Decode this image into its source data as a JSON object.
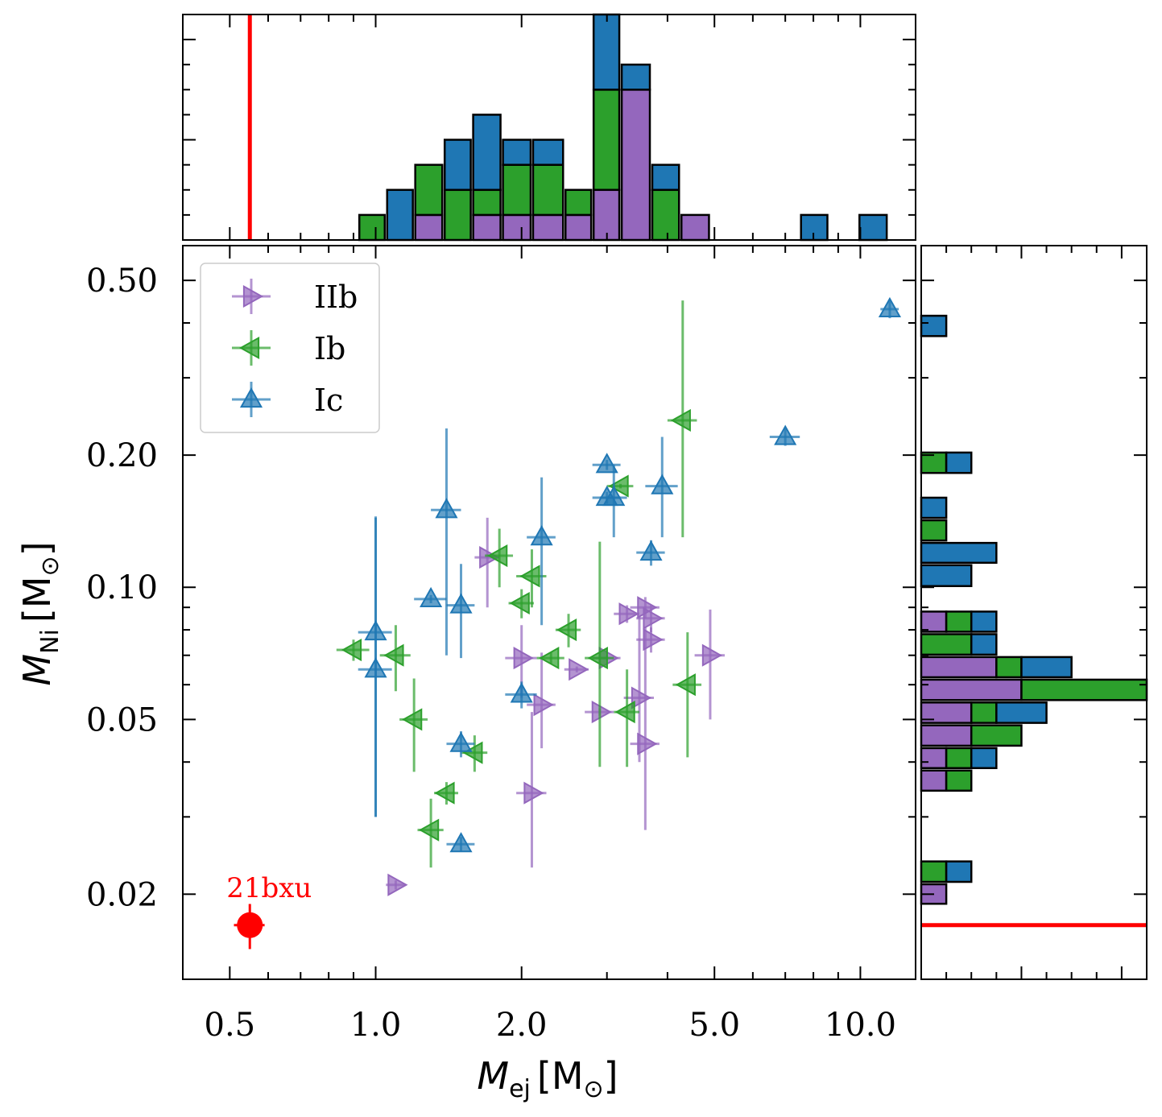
{
  "chart_data": {
    "type": "scatter",
    "xscale": "log",
    "yscale": "log",
    "xlim": [
      0.4,
      13.0
    ],
    "ylim": [
      0.0128,
      0.6
    ],
    "xlabel": {
      "symbol": "M",
      "sub": "ej",
      "unit": "M",
      "unit_sub": "⊙"
    },
    "ylabel": {
      "symbol": "M",
      "sub": "Ni",
      "unit": "M",
      "unit_sub": "⊙"
    },
    "xticks": [
      0.5,
      1.0,
      2.0,
      5.0,
      10.0
    ],
    "xtick_labels": [
      "0.5",
      "1.0",
      "2.0",
      "5.0",
      "10.0"
    ],
    "yticks": [
      0.02,
      0.05,
      0.1,
      0.2,
      0.5
    ],
    "ytick_labels": [
      "0.02",
      "0.05",
      "0.10",
      "0.20",
      "0.50"
    ],
    "legend": {
      "position": "upper-left",
      "entries": [
        "IIb",
        "Ib",
        "Ic"
      ]
    },
    "series": [
      {
        "name": "IIb",
        "color": "#9467bd",
        "marker": "triangle-right",
        "points": [
          {
            "x": 1.1,
            "y": 0.021,
            "xerr": 0.05,
            "yerr": [
              0.0005,
              0.0005
            ]
          },
          {
            "x": 1.7,
            "y": 0.117,
            "xerr": 0.1,
            "yerr": [
              0.027,
              0.027
            ]
          },
          {
            "x": 2.0,
            "y": 0.069,
            "xerr": 0.15,
            "yerr": [
              0.013,
              0.013
            ]
          },
          {
            "x": 2.1,
            "y": 0.034,
            "xerr": 0.15,
            "yerr": [
              0.011,
              0.018
            ]
          },
          {
            "x": 2.2,
            "y": 0.054,
            "xerr": 0.15,
            "yerr": [
              0.011,
              0.017
            ]
          },
          {
            "x": 2.6,
            "y": 0.065,
            "xerr": 0.15,
            "yerr": [
              0.001,
              0.001
            ]
          },
          {
            "x": 2.9,
            "y": 0.052,
            "xerr": 0.2,
            "yerr": [
              0.001,
              0.001
            ]
          },
          {
            "x": 3.0,
            "y": 0.069,
            "xerr": 0.2,
            "yerr": [
              0.001,
              0.001
            ]
          },
          {
            "x": 3.3,
            "y": 0.087,
            "xerr": 0.2,
            "yerr": [
              0.004,
              0.004
            ]
          },
          {
            "x": 3.5,
            "y": 0.056,
            "xerr": 0.25,
            "yerr": [
              0.016,
              0.03
            ]
          },
          {
            "x": 3.6,
            "y": 0.09,
            "xerr": 0.25,
            "yerr": [
              0.005,
              0.005
            ]
          },
          {
            "x": 3.6,
            "y": 0.044,
            "xerr": 0.25,
            "yerr": [
              0.016,
              0.037
            ]
          },
          {
            "x": 3.7,
            "y": 0.085,
            "xerr": 0.25,
            "yerr": [
              0.006,
              0.006
            ]
          },
          {
            "x": 3.7,
            "y": 0.076,
            "xerr": 0.25,
            "yerr": [
              0.005,
              0.005
            ]
          },
          {
            "x": 4.9,
            "y": 0.07,
            "xerr": 0.35,
            "yerr": [
              0.02,
              0.019
            ]
          }
        ]
      },
      {
        "name": "Ib",
        "color": "#2ca02c",
        "marker": "triangle-left",
        "points": [
          {
            "x": 0.9,
            "y": 0.072,
            "xerr": 0.07,
            "yerr": [
              0.004,
              0.004
            ]
          },
          {
            "x": 1.1,
            "y": 0.07,
            "xerr": 0.08,
            "yerr": [
              0.012,
              0.012
            ]
          },
          {
            "x": 1.2,
            "y": 0.05,
            "xerr": 0.08,
            "yerr": [
              0.012,
              0.012
            ]
          },
          {
            "x": 1.3,
            "y": 0.028,
            "xerr": 0.08,
            "yerr": [
              0.005,
              0.005
            ]
          },
          {
            "x": 1.4,
            "y": 0.034,
            "xerr": 0.08,
            "yerr": [
              0.002,
              0.002
            ]
          },
          {
            "x": 1.6,
            "y": 0.042,
            "xerr": 0.1,
            "yerr": [
              0.004,
              0.004
            ]
          },
          {
            "x": 1.8,
            "y": 0.118,
            "xerr": 0.12,
            "yerr": [
              0.018,
              0.018
            ]
          },
          {
            "x": 2.0,
            "y": 0.092,
            "xerr": 0.12,
            "yerr": [
              0.007,
              0.007
            ]
          },
          {
            "x": 2.1,
            "y": 0.106,
            "xerr": 0.15,
            "yerr": [
              0.016,
              0.016
            ]
          },
          {
            "x": 2.3,
            "y": 0.069,
            "xerr": 0.15,
            "yerr": [
              0.002,
              0.002
            ]
          },
          {
            "x": 2.5,
            "y": 0.08,
            "xerr": 0.15,
            "yerr": [
              0.007,
              0.007
            ]
          },
          {
            "x": 2.9,
            "y": 0.069,
            "xerr": 0.2,
            "yerr": [
              0.03,
              0.058
            ]
          },
          {
            "x": 3.2,
            "y": 0.17,
            "xerr": 0.2,
            "yerr": [
              0.002,
              0.002
            ]
          },
          {
            "x": 3.3,
            "y": 0.052,
            "xerr": 0.2,
            "yerr": [
              0.013,
              0.013
            ]
          },
          {
            "x": 4.3,
            "y": 0.24,
            "xerr": 0.3,
            "yerr": [
              0.11,
              0.21
            ]
          },
          {
            "x": 4.4,
            "y": 0.06,
            "xerr": 0.3,
            "yerr": [
              0.019,
              0.019
            ]
          }
        ]
      },
      {
        "name": "Ic",
        "color": "#1f77b4",
        "marker": "triangle-up",
        "points": [
          {
            "x": 1.0,
            "y": 0.079,
            "xerr": 0.08,
            "yerr": [
              0.049,
              0.066
            ]
          },
          {
            "x": 1.0,
            "y": 0.065,
            "xerr": 0.08,
            "yerr": [
              0.035,
              0.079
            ]
          },
          {
            "x": 1.3,
            "y": 0.094,
            "xerr": 0.1,
            "yerr": [
              0.002,
              0.002
            ]
          },
          {
            "x": 1.4,
            "y": 0.15,
            "xerr": 0.1,
            "yerr": [
              0.08,
              0.08
            ]
          },
          {
            "x": 1.5,
            "y": 0.091,
            "xerr": 0.1,
            "yerr": [
              0.022,
              0.022
            ]
          },
          {
            "x": 1.5,
            "y": 0.044,
            "xerr": 0.1,
            "yerr": [
              0.003,
              0.003
            ]
          },
          {
            "x": 1.5,
            "y": 0.026,
            "xerr": 0.1,
            "yerr": [
              0.001,
              0.001
            ]
          },
          {
            "x": 2.0,
            "y": 0.057,
            "xerr": 0.15,
            "yerr": [
              0.004,
              0.004
            ]
          },
          {
            "x": 2.2,
            "y": 0.13,
            "xerr": 0.15,
            "yerr": [
              0.048,
              0.048
            ]
          },
          {
            "x": 3.0,
            "y": 0.19,
            "xerr": 0.2,
            "yerr": [
              0.005,
              0.005
            ]
          },
          {
            "x": 3.0,
            "y": 0.16,
            "xerr": 0.2,
            "yerr": [
              0.005,
              0.005
            ]
          },
          {
            "x": 3.1,
            "y": 0.16,
            "xerr": 0.2,
            "yerr": [
              0.03,
              0.03
            ]
          },
          {
            "x": 3.7,
            "y": 0.12,
            "xerr": 0.25,
            "yerr": [
              0.008,
              0.008
            ]
          },
          {
            "x": 3.9,
            "y": 0.17,
            "xerr": 0.3,
            "yerr": [
              0.04,
              0.05
            ]
          },
          {
            "x": 7.0,
            "y": 0.22,
            "xerr": 0.5,
            "yerr": [
              0.01,
              0.01
            ]
          },
          {
            "x": 11.5,
            "y": 0.43,
            "xerr": 0.5,
            "yerr": [
              0.02,
              0.02
            ]
          }
        ]
      }
    ],
    "highlight": {
      "label": "21bxu",
      "x": 0.55,
      "y": 0.017,
      "xerr": 0.04,
      "yerr": [
        0.002,
        0.002
      ],
      "color": "#ff0000"
    },
    "top_histogram": {
      "stacked": true,
      "order": [
        "IIb",
        "Ib",
        "Ic"
      ],
      "bin_edges": [
        0.4,
        0.53,
        0.7,
        0.92,
        1.05,
        1.2,
        1.38,
        1.58,
        1.82,
        2.1,
        2.45,
        2.8,
        3.2,
        3.7,
        4.25,
        4.9,
        5.6,
        6.5,
        7.5,
        8.6,
        9.9,
        11.4,
        13.0
      ],
      "counts": {
        "IIb": [
          0,
          0,
          0,
          0,
          0,
          1,
          0,
          1,
          1,
          1,
          1,
          2,
          6,
          0,
          1,
          0,
          0,
          0,
          0,
          0,
          0,
          0
        ],
        "Ib": [
          0,
          0,
          0,
          1,
          0,
          2,
          2,
          1,
          2,
          2,
          1,
          4,
          0,
          2,
          0,
          0,
          0,
          0,
          0,
          0,
          0,
          0
        ],
        "Ic": [
          0,
          0,
          0,
          0,
          2,
          0,
          2,
          3,
          1,
          1,
          0,
          3,
          1,
          1,
          0,
          0,
          0,
          0,
          1,
          0,
          1,
          0
        ]
      },
      "ylim": [
        0,
        9.0
      ],
      "reference_line": {
        "x": 0.55,
        "color": "#ff0000"
      }
    },
    "right_histogram": {
      "stacked": true,
      "orientation": "horizontal",
      "order": [
        "IIb",
        "Ib",
        "Ic"
      ],
      "bin_edges": [
        0.0128,
        0.0189,
        0.0212,
        0.0239,
        0.0269,
        0.0303,
        0.0342,
        0.0385,
        0.0433,
        0.0488,
        0.055,
        0.062,
        0.0698,
        0.0787,
        0.0886,
        0.1,
        0.113,
        0.127,
        0.143,
        0.161,
        0.181,
        0.204,
        0.23,
        0.259,
        0.292,
        0.329,
        0.371,
        0.418,
        0.471,
        0.531,
        0.6
      ],
      "counts": {
        "IIb": [
          0,
          1,
          0,
          0,
          0,
          0,
          1,
          1,
          2,
          2,
          4,
          3,
          0,
          1,
          0,
          0,
          0,
          0,
          0,
          0,
          0,
          0,
          0,
          0,
          0,
          0,
          0,
          0,
          0,
          0
        ],
        "Ib": [
          0,
          0,
          1,
          0,
          0,
          0,
          1,
          1,
          2,
          1,
          5,
          1,
          2,
          1,
          0,
          0,
          0,
          1,
          0,
          0,
          1,
          0,
          0,
          0,
          0,
          0,
          0,
          0,
          0,
          0
        ],
        "Ic": [
          0,
          0,
          1,
          0,
          0,
          0,
          0,
          1,
          0,
          2,
          0,
          2,
          1,
          1,
          0,
          2,
          3,
          0,
          1,
          0,
          1,
          0,
          0,
          0,
          0,
          0,
          1,
          0,
          0,
          0
        ]
      },
      "xlim": [
        0,
        9.0
      ],
      "reference_line": {
        "y": 0.017,
        "color": "#ff0000"
      }
    }
  }
}
